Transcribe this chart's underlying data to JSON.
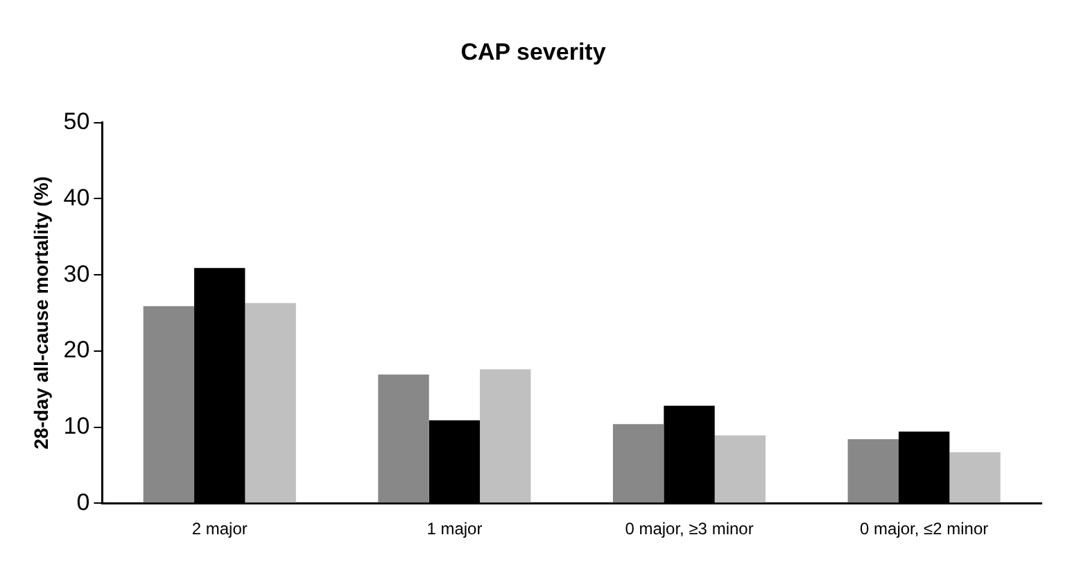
{
  "chart_data": {
    "type": "bar",
    "title": "CAP severity",
    "ylabel": "28-day all-cause mortality (%)",
    "categories": [
      "2 major",
      "1 major",
      "0 major, ≥3 minor",
      "0 major, ≤2 minor"
    ],
    "series": [
      {
        "color": "#888888",
        "values": [
          25.9,
          16.9,
          10.4,
          8.4
        ]
      },
      {
        "color": "#000000",
        "values": [
          30.9,
          10.9,
          12.8,
          9.4
        ]
      },
      {
        "color": "#c0c0c0",
        "values": [
          26.3,
          17.6,
          8.9,
          6.7
        ]
      }
    ],
    "ylim": [
      0,
      50
    ],
    "yticks": [
      0,
      10,
      20,
      30,
      40,
      50
    ],
    "grid": false,
    "legend": false
  }
}
